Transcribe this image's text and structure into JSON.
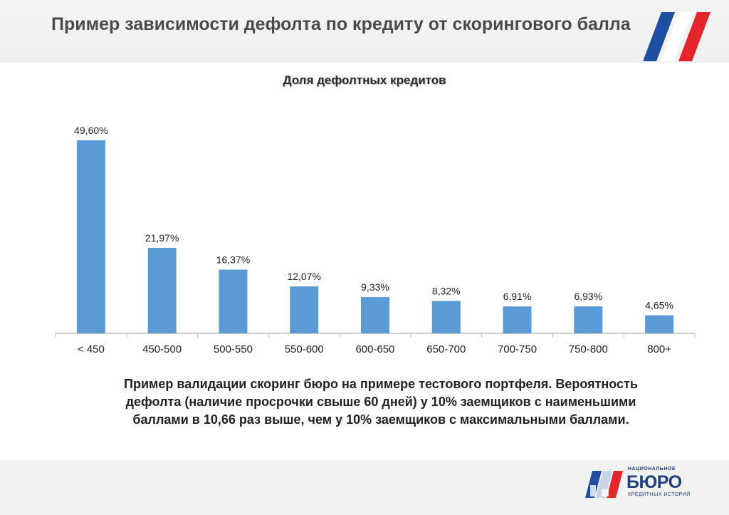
{
  "slide": {
    "title": "Пример зависимости дефолта по кредиту от скорингового балла"
  },
  "chart_data": {
    "type": "bar",
    "title": "Доля дефолтных кредитов",
    "categories": [
      "< 450",
      "450-500",
      "500-550",
      "550-600",
      "600-650",
      "650-700",
      "700-750",
      "750-800",
      "800+"
    ],
    "values": [
      49.6,
      21.97,
      16.37,
      12.07,
      9.33,
      8.32,
      6.91,
      6.93,
      4.65
    ],
    "value_labels": [
      "49,60%",
      "21,97%",
      "16,37%",
      "12,07%",
      "9,33%",
      "8,32%",
      "6,91%",
      "6,93%",
      "4,65%"
    ],
    "xlabel": "",
    "ylabel": "",
    "ylim": [
      0,
      50
    ],
    "grid": false,
    "legend": "none",
    "bar_color": "#5b9bd5"
  },
  "caption": {
    "lines": [
      "Пример валидации скоринг бюро на примере тестового портфеля. Вероятность",
      "дефолта (наличие просрочки свыше 60 дней) у 10% заемщиков с наименьшими",
      "баллами в 10,66 раз выше, чем у 10% заемщиков с максимальными баллами."
    ]
  },
  "logo": {
    "top_text": "НАЦИОНАЛЬНОЕ",
    "main_text": "БЮРО",
    "sub_text": "КРЕДИТНЫХ ИСТОРИЙ"
  },
  "colors": {
    "flag_blue": "#1f4fa0",
    "flag_red": "#e3262b",
    "title_gray": "#4a4a4a"
  }
}
